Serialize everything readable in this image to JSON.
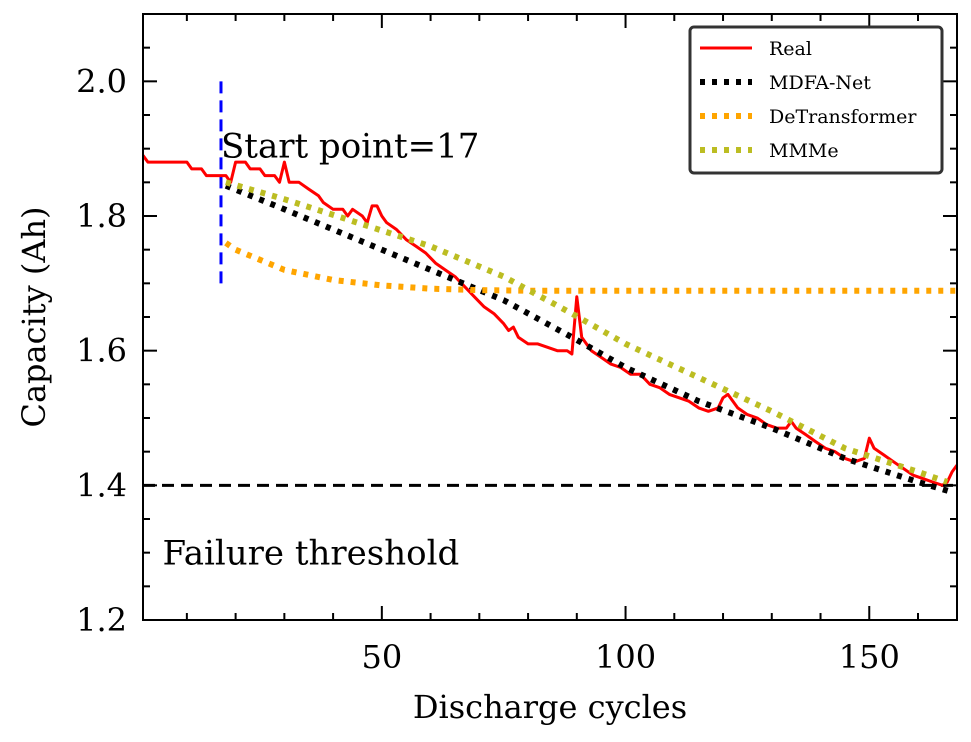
{
  "chart_data": {
    "type": "line",
    "title": "",
    "xlabel": "Discharge cycles",
    "ylabel": "Capacity (Ah)",
    "xlim": [
      1,
      168
    ],
    "ylim": [
      1.2,
      2.1
    ],
    "x_ticks": [
      50,
      100,
      150
    ],
    "x_tick_labels": [
      "50",
      "100",
      "150"
    ],
    "y_ticks": [
      1.2,
      1.4,
      1.6,
      1.8,
      2.0
    ],
    "y_tick_labels": [
      "1.2",
      "1.4",
      "1.6",
      "1.8",
      "2.0"
    ],
    "grid": false,
    "legend_position": "top-right",
    "series": [
      {
        "name": "Real",
        "color": "#ff0000",
        "style": "solid",
        "points": [
          [
            1,
            1.89
          ],
          [
            2,
            1.88
          ],
          [
            4,
            1.88
          ],
          [
            6,
            1.88
          ],
          [
            8,
            1.88
          ],
          [
            10,
            1.88
          ],
          [
            11,
            1.87
          ],
          [
            13,
            1.87
          ],
          [
            14,
            1.86
          ],
          [
            16,
            1.86
          ],
          [
            18,
            1.86
          ],
          [
            19,
            1.85
          ],
          [
            20,
            1.88
          ],
          [
            22,
            1.88
          ],
          [
            23,
            1.87
          ],
          [
            25,
            1.87
          ],
          [
            26,
            1.86
          ],
          [
            28,
            1.86
          ],
          [
            29,
            1.85
          ],
          [
            30,
            1.88
          ],
          [
            31,
            1.85
          ],
          [
            33,
            1.85
          ],
          [
            35,
            1.84
          ],
          [
            37,
            1.83
          ],
          [
            38,
            1.82
          ],
          [
            40,
            1.81
          ],
          [
            42,
            1.81
          ],
          [
            43,
            1.8
          ],
          [
            44,
            1.81
          ],
          [
            46,
            1.8
          ],
          [
            47,
            1.79
          ],
          [
            48,
            1.815
          ],
          [
            49,
            1.815
          ],
          [
            50,
            1.8
          ],
          [
            51,
            1.79
          ],
          [
            53,
            1.78
          ],
          [
            55,
            1.765
          ],
          [
            57,
            1.755
          ],
          [
            59,
            1.745
          ],
          [
            61,
            1.73
          ],
          [
            63,
            1.72
          ],
          [
            65,
            1.71
          ],
          [
            67,
            1.695
          ],
          [
            69,
            1.68
          ],
          [
            71,
            1.665
          ],
          [
            73,
            1.655
          ],
          [
            75,
            1.64
          ],
          [
            76,
            1.63
          ],
          [
            77,
            1.635
          ],
          [
            78,
            1.62
          ],
          [
            80,
            1.61
          ],
          [
            82,
            1.61
          ],
          [
            84,
            1.605
          ],
          [
            86,
            1.6
          ],
          [
            88,
            1.6
          ],
          [
            89,
            1.595
          ],
          [
            90,
            1.68
          ],
          [
            91,
            1.62
          ],
          [
            93,
            1.6
          ],
          [
            95,
            1.59
          ],
          [
            97,
            1.58
          ],
          [
            99,
            1.575
          ],
          [
            101,
            1.565
          ],
          [
            103,
            1.565
          ],
          [
            105,
            1.55
          ],
          [
            107,
            1.545
          ],
          [
            109,
            1.535
          ],
          [
            111,
            1.53
          ],
          [
            113,
            1.525
          ],
          [
            115,
            1.515
          ],
          [
            117,
            1.51
          ],
          [
            119,
            1.515
          ],
          [
            120,
            1.53
          ],
          [
            121,
            1.535
          ],
          [
            123,
            1.515
          ],
          [
            125,
            1.505
          ],
          [
            127,
            1.5
          ],
          [
            129,
            1.49
          ],
          [
            131,
            1.485
          ],
          [
            133,
            1.485
          ],
          [
            134,
            1.495
          ],
          [
            135,
            1.485
          ],
          [
            137,
            1.475
          ],
          [
            139,
            1.465
          ],
          [
            141,
            1.455
          ],
          [
            143,
            1.45
          ],
          [
            145,
            1.44
          ],
          [
            147,
            1.435
          ],
          [
            149,
            1.44
          ],
          [
            150,
            1.47
          ],
          [
            151,
            1.455
          ],
          [
            153,
            1.445
          ],
          [
            155,
            1.435
          ],
          [
            157,
            1.425
          ],
          [
            159,
            1.415
          ],
          [
            161,
            1.41
          ],
          [
            163,
            1.405
          ],
          [
            165,
            1.4
          ],
          [
            166,
            1.405
          ],
          [
            167,
            1.42
          ],
          [
            168,
            1.43
          ]
        ]
      },
      {
        "name": "MDFA-Net",
        "color": "#000000",
        "style": "dotted",
        "points": [
          [
            18,
            1.845
          ],
          [
            30,
            1.81
          ],
          [
            45,
            1.765
          ],
          [
            60,
            1.72
          ],
          [
            75,
            1.675
          ],
          [
            89,
            1.62
          ],
          [
            100,
            1.575
          ],
          [
            115,
            1.525
          ],
          [
            130,
            1.485
          ],
          [
            145,
            1.44
          ],
          [
            160,
            1.405
          ],
          [
            167,
            1.39
          ]
        ]
      },
      {
        "name": "DeTransformer",
        "color": "#ffa500",
        "style": "dotted",
        "points": [
          [
            18,
            1.76
          ],
          [
            20,
            1.75
          ],
          [
            25,
            1.735
          ],
          [
            30,
            1.72
          ],
          [
            40,
            1.705
          ],
          [
            50,
            1.697
          ],
          [
            60,
            1.692
          ],
          [
            70,
            1.69
          ],
          [
            80,
            1.689
          ],
          [
            100,
            1.689
          ],
          [
            130,
            1.689
          ],
          [
            168,
            1.689
          ]
        ]
      },
      {
        "name": "MMMe",
        "color": "#bcbd22",
        "style": "dotted",
        "points": [
          [
            18,
            1.85
          ],
          [
            30,
            1.825
          ],
          [
            45,
            1.79
          ],
          [
            60,
            1.755
          ],
          [
            75,
            1.71
          ],
          [
            89,
            1.655
          ],
          [
            100,
            1.61
          ],
          [
            115,
            1.56
          ],
          [
            130,
            1.51
          ],
          [
            145,
            1.455
          ],
          [
            160,
            1.42
          ],
          [
            166,
            1.405
          ]
        ]
      }
    ],
    "reference_lines": [
      {
        "name": "start-point-line",
        "orientation": "vertical",
        "x": 17,
        "y_from": 1.7,
        "y_to": 2.0,
        "color": "#0000ff",
        "style": "dashed"
      },
      {
        "name": "failure-threshold-line",
        "orientation": "horizontal",
        "y": 1.4,
        "color": "#000000",
        "style": "dashed"
      }
    ],
    "annotations": [
      {
        "name": "start-point-annotation",
        "text": "Start point=17",
        "x": 17,
        "y": 1.905
      },
      {
        "name": "failure-threshold-annotation",
        "text": "Failure threshold",
        "x": 5,
        "y": 1.3
      }
    ]
  }
}
